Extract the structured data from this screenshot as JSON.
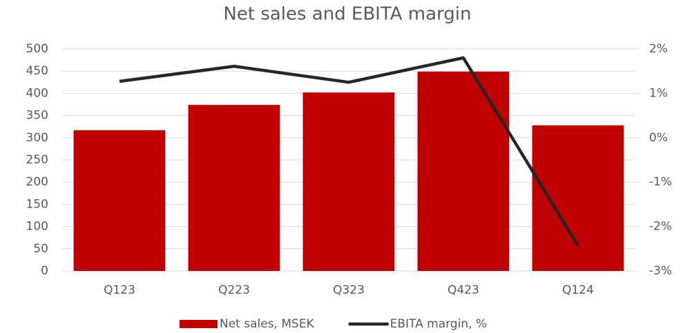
{
  "chart_data": {
    "type": "bar_line",
    "title": "Net sales and EBITA margin",
    "categories": [
      "Q123",
      "Q223",
      "Q323",
      "Q423",
      "Q124"
    ],
    "series": [
      {
        "name": "Net sales, MSEK",
        "type": "bar",
        "color": "#c00000",
        "values": [
          317,
          374,
          402,
          449,
          328
        ]
      },
      {
        "name": "EBITA margin, %",
        "type": "line",
        "axis": "y2",
        "color": "#262626",
        "values": [
          1.27,
          1.61,
          1.25,
          1.8,
          -2.43
        ]
      }
    ],
    "ylim": [
      0,
      500
    ],
    "yticks": [
      0,
      50,
      100,
      150,
      200,
      250,
      300,
      350,
      400,
      450,
      500
    ],
    "y2lim": [
      -3,
      2
    ],
    "y2ticks": [
      {
        "value": 2,
        "label": "2%"
      },
      {
        "value": 1,
        "label": "1%"
      },
      {
        "value": 0,
        "label": "0%"
      },
      {
        "value": -1,
        "label": "-1%"
      },
      {
        "value": -2,
        "label": "-2%"
      },
      {
        "value": -3,
        "label": "-3%"
      }
    ],
    "grid": true,
    "legend": "bottom"
  }
}
